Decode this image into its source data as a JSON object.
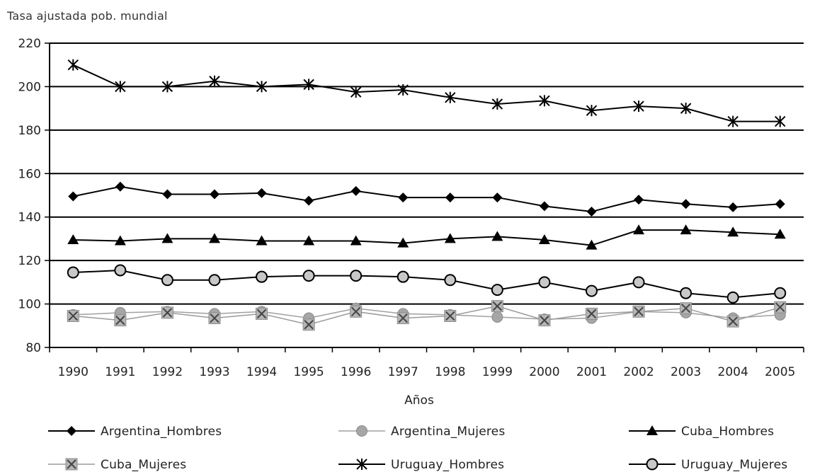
{
  "chart_data": {
    "type": "line",
    "ylabel": "Tasa ajustada pob. mundial",
    "xlabel": "Años",
    "x": [
      1990,
      1991,
      1992,
      1993,
      1994,
      1995,
      1996,
      1997,
      1998,
      1999,
      2000,
      2001,
      2002,
      2003,
      2004,
      2005
    ],
    "ylim": [
      80,
      220
    ],
    "yticks": [
      80,
      100,
      120,
      140,
      160,
      180,
      200,
      220
    ],
    "grid": "horizontal",
    "legend_position": "bottom",
    "series": [
      {
        "name": "Argentina_Hombres",
        "marker": "diamond",
        "color": "#000000",
        "values": [
          149.5,
          154,
          150.5,
          150.5,
          151,
          147.5,
          152,
          149,
          149,
          149,
          145,
          142.5,
          148,
          146,
          144.5,
          146
        ]
      },
      {
        "name": "Argentina_Mujeres",
        "marker": "circle-filled",
        "color": "#999999",
        "values": [
          95,
          96,
          96.5,
          95.5,
          96.5,
          93.5,
          98,
          95.5,
          95,
          94,
          93,
          93.5,
          96.5,
          96,
          93.5,
          95
        ]
      },
      {
        "name": "Cuba_Hombres",
        "marker": "triangle",
        "color": "#000000",
        "values": [
          129.5,
          129,
          130,
          130,
          129,
          129,
          129,
          128,
          130,
          131,
          129.5,
          127,
          134,
          134,
          133,
          132
        ]
      },
      {
        "name": "Cuba_Mujeres",
        "marker": "square-x",
        "color": "#888888",
        "values": [
          94.5,
          92.5,
          96,
          93.5,
          95.5,
          90.5,
          96.5,
          93.5,
          94.5,
          99,
          92.5,
          95.5,
          96.5,
          98,
          92,
          98.5
        ]
      },
      {
        "name": "Uruguay_Hombres",
        "marker": "asterisk",
        "color": "#000000",
        "values": [
          210,
          200,
          200,
          202.5,
          200,
          201,
          197.5,
          198.5,
          195,
          192,
          193.5,
          189,
          191,
          190,
          184,
          184
        ]
      },
      {
        "name": "Uruguay_Mujeres",
        "marker": "circle-open",
        "color": "#000000",
        "values": [
          114.5,
          115.5,
          111,
          111,
          112.5,
          113,
          113,
          112.5,
          111,
          106.5,
          110,
          106,
          110,
          105,
          103,
          105
        ]
      }
    ]
  }
}
